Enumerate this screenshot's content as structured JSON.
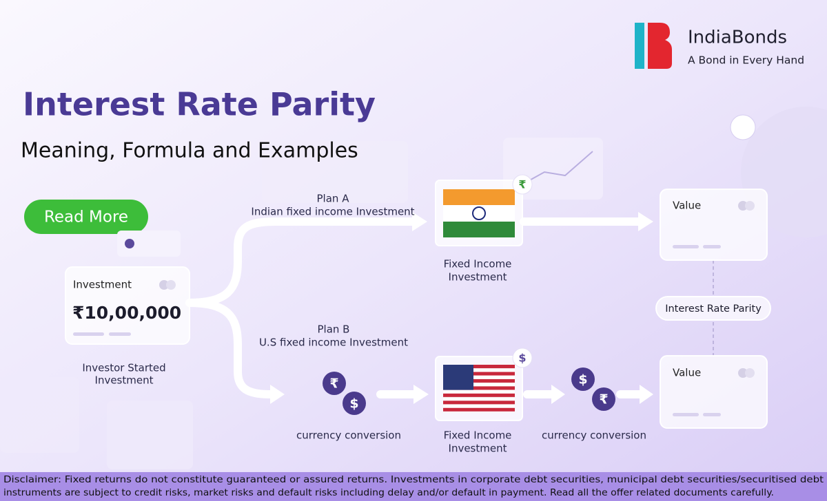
{
  "brand": {
    "name": "IndiaBonds",
    "tagline": "A Bond in Every Hand"
  },
  "header": {
    "title": "Interest Rate Parity",
    "subtitle": "Meaning, Formula and Examples"
  },
  "button": "Read More",
  "investment": {
    "label": "Investment",
    "amount": "₹10,00,000",
    "caption": [
      "Investor Started",
      "Investment"
    ]
  },
  "plan_a": {
    "title": "Plan A",
    "subtitle": "Indian fixed income Investment"
  },
  "plan_b": {
    "title": "Plan B",
    "subtitle": "U.S fixed income Investment"
  },
  "symbols": {
    "rupee": "₹",
    "dollar": "$"
  },
  "fixed_income": [
    "Fixed Income",
    "Investment"
  ],
  "conversion": "currency conversion",
  "value_card": "Value",
  "parity": "Interest Rate Parity",
  "disclaimer": [
    "Disclaimer: Fixed returns do not constitute guaranteed or assured returns. Investments in corporate debt securities, municipal debt securities/securitised debt",
    "instruments are subject to credit risks, market risks and default risks including delay and/or default in payment. Read all the offer related documents carefully."
  ]
}
